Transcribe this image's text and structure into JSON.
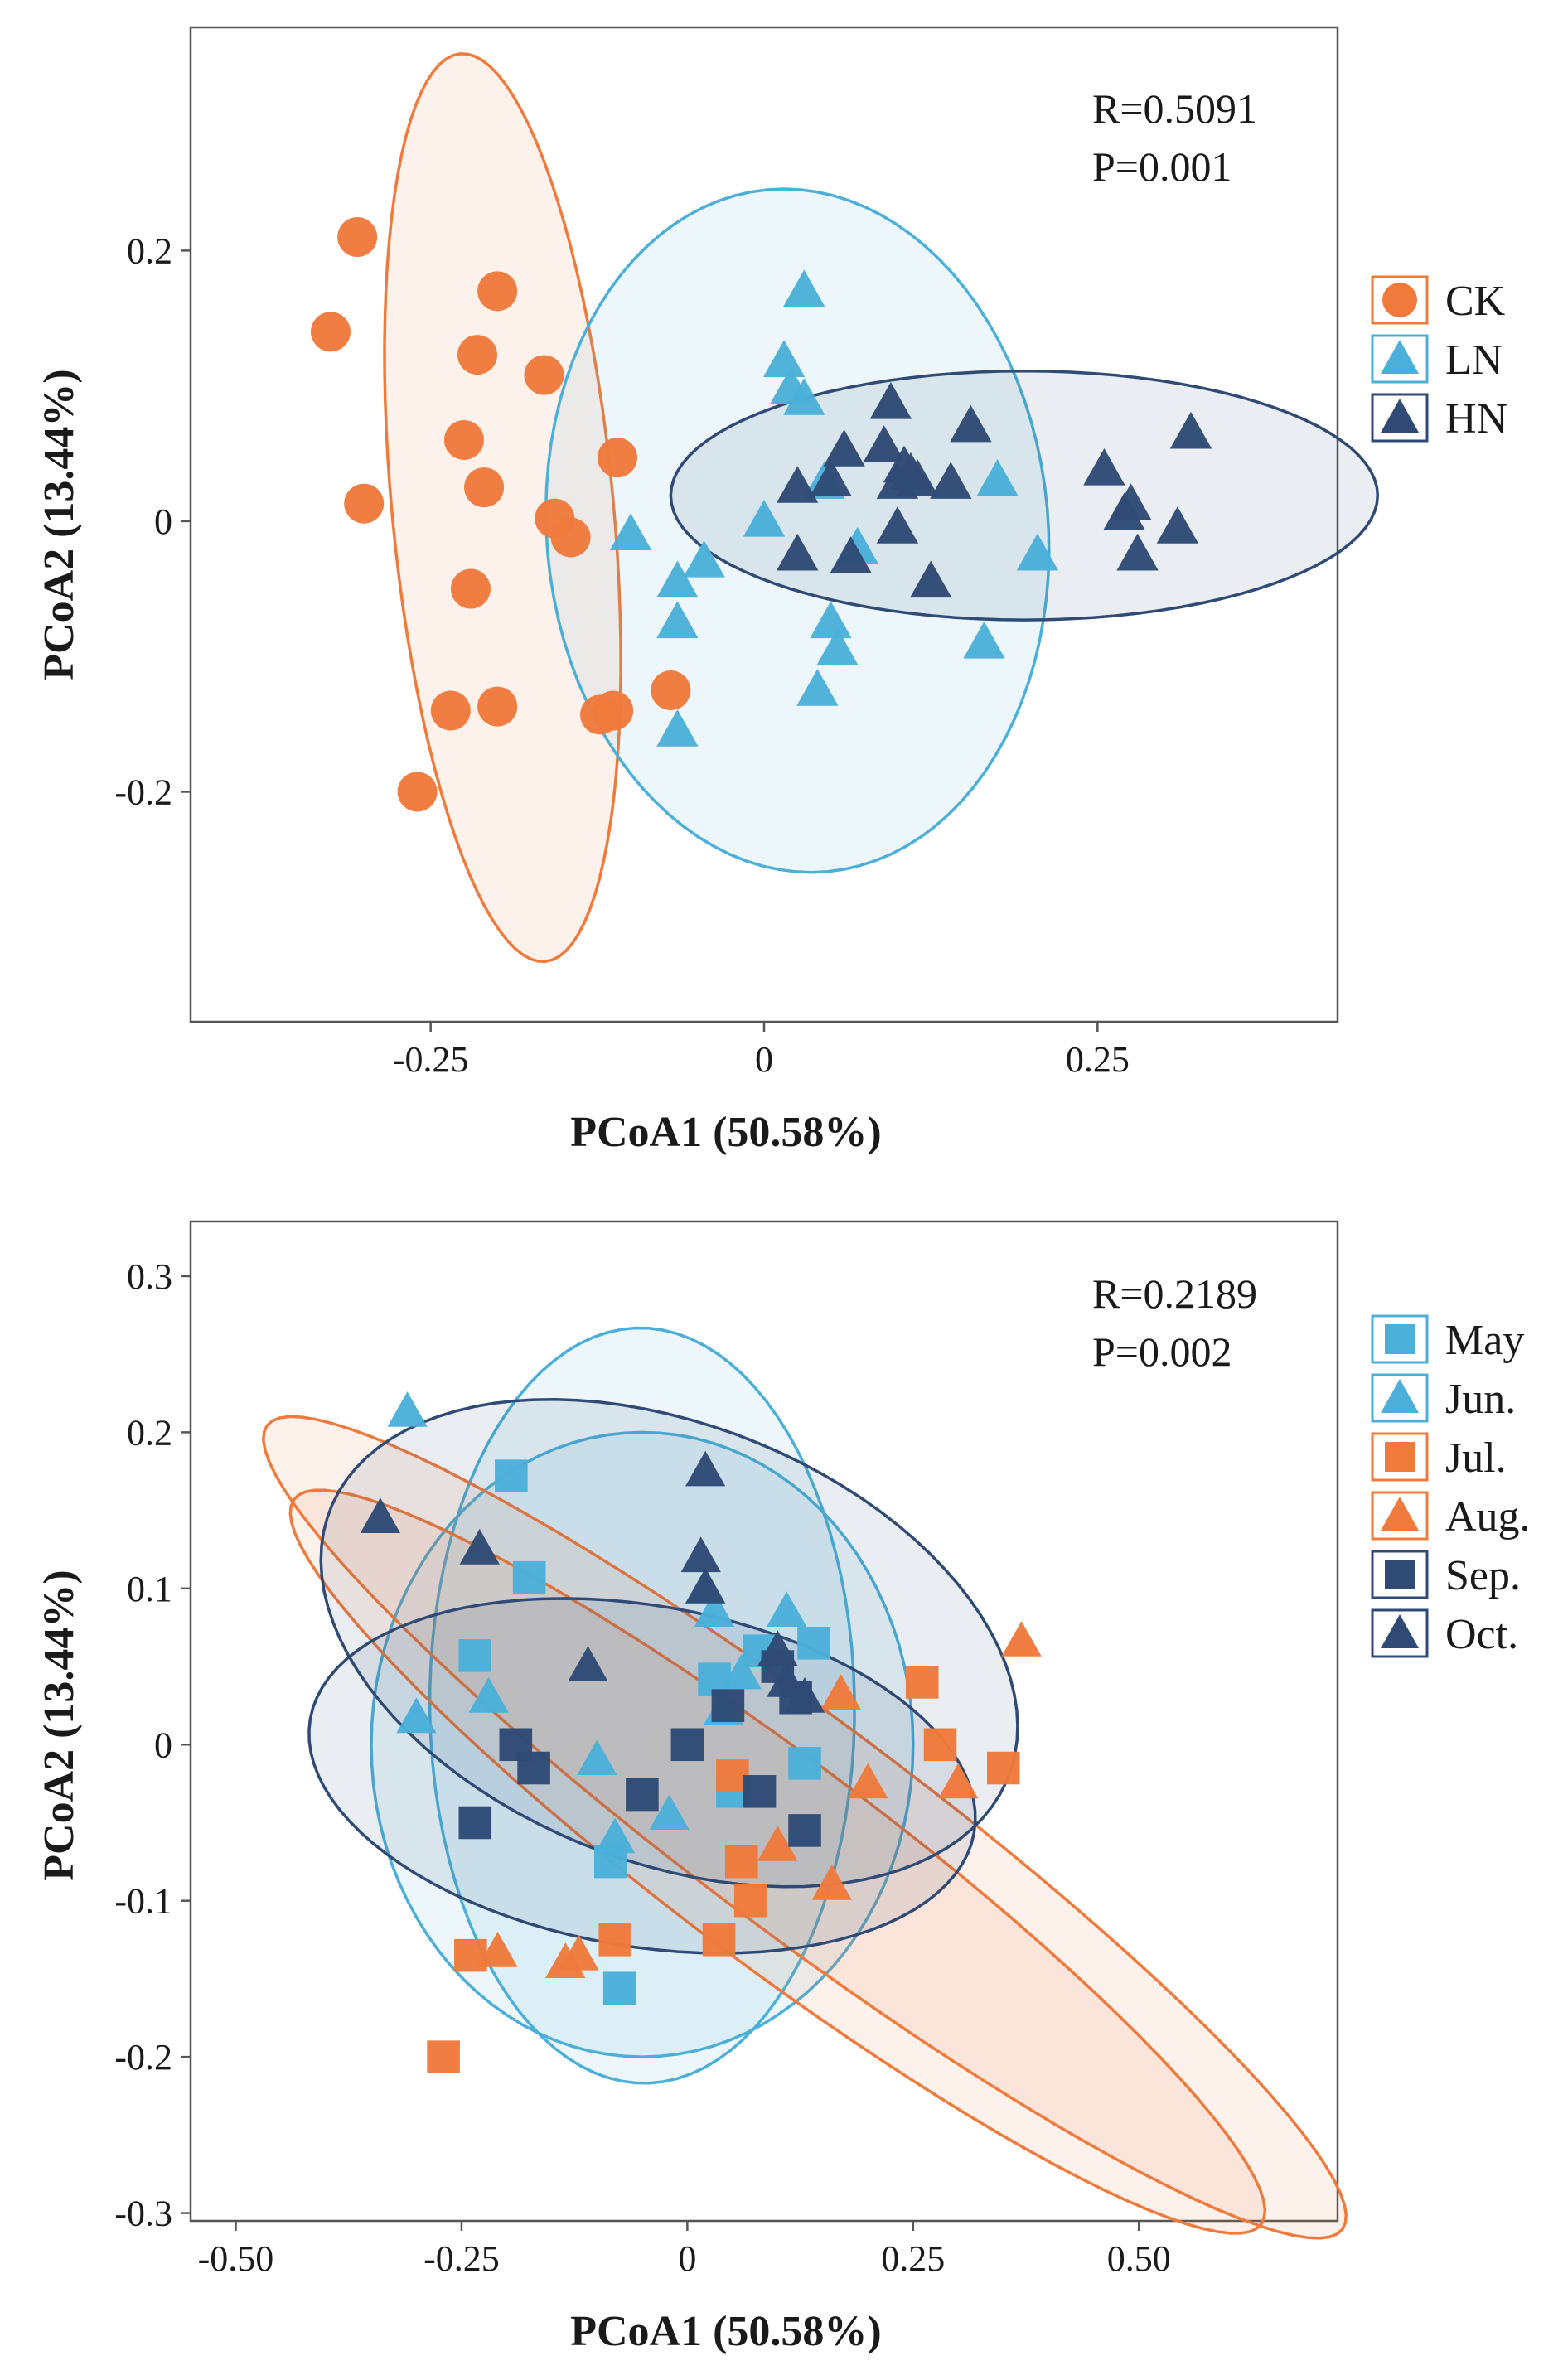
{
  "chart_data": [
    {
      "type": "scatter",
      "title": "",
      "xlabel": "PCoA1 (50.58%)",
      "ylabel": "PCoA2 (13.44%)",
      "xlim": [
        -0.43,
        0.43
      ],
      "ylim": [
        -0.37,
        0.365
      ],
      "xticks": [
        -0.25,
        0,
        0.25
      ],
      "xtick_labels": [
        "-0.25",
        "0",
        "0.25"
      ],
      "yticks": [
        -0.2,
        0,
        0.2
      ],
      "ytick_labels": [
        "-0.2",
        "0",
        "0.2"
      ],
      "grid": false,
      "legend_position": "right",
      "stats": [
        "R=0.5091",
        "P=0.001"
      ],
      "series": [
        {
          "name": "CK",
          "marker": "circle",
          "color": "#F07A3C",
          "ellipse": {
            "cx": -0.196,
            "cy": 0.01,
            "rx": 0.083,
            "ry": 0.337,
            "angle": 0.095
          },
          "points": [
            [
              -0.305,
              0.21
            ],
            [
              -0.325,
              0.14
            ],
            [
              -0.3,
              0.013
            ],
            [
              -0.2,
              0.17
            ],
            [
              -0.215,
              0.123
            ],
            [
              -0.165,
              0.108
            ],
            [
              -0.225,
              0.06
            ],
            [
              -0.21,
              0.025
            ],
            [
              -0.11,
              0.047
            ],
            [
              -0.157,
              0.002
            ],
            [
              -0.145,
              -0.012
            ],
            [
              -0.22,
              -0.05
            ],
            [
              -0.235,
              -0.14
            ],
            [
              -0.2,
              -0.137
            ],
            [
              -0.123,
              -0.143
            ],
            [
              -0.113,
              -0.14
            ],
            [
              -0.07,
              -0.125
            ],
            [
              -0.26,
              -0.2
            ]
          ]
        },
        {
          "name": "LN",
          "marker": "triangle",
          "color": "#4BAFD9",
          "ellipse": {
            "cx": 0.025,
            "cy": -0.007,
            "rx": 0.188,
            "ry": 0.253,
            "angle": 0.09
          },
          "points": [
            [
              0.03,
              0.17
            ],
            [
              0.015,
              0.118
            ],
            [
              0.02,
              0.098
            ],
            [
              0.03,
              0.09
            ],
            [
              -0.1,
              -0.01
            ],
            [
              -0.045,
              -0.03
            ],
            [
              -0.065,
              -0.045
            ],
            [
              -0.065,
              -0.075
            ],
            [
              0.0,
              0.0
            ],
            [
              0.045,
              0.028
            ],
            [
              0.07,
              -0.02
            ],
            [
              0.05,
              -0.075
            ],
            [
              0.055,
              -0.095
            ],
            [
              0.04,
              -0.125
            ],
            [
              0.165,
              -0.09
            ],
            [
              0.175,
              0.03
            ],
            [
              0.205,
              -0.025
            ],
            [
              -0.065,
              -0.155
            ]
          ]
        },
        {
          "name": "HN",
          "marker": "triangle",
          "color": "#2E4A75",
          "ellipse": {
            "cx": 0.195,
            "cy": 0.019,
            "rx": 0.265,
            "ry": 0.092,
            "angle": 0.0
          },
          "points": [
            [
              0.095,
              0.087
            ],
            [
              0.155,
              0.07
            ],
            [
              0.06,
              0.052
            ],
            [
              0.09,
              0.055
            ],
            [
              0.105,
              0.04
            ],
            [
              0.1,
              0.028
            ],
            [
              0.11,
              0.035
            ],
            [
              0.14,
              0.028
            ],
            [
              0.025,
              0.025
            ],
            [
              0.05,
              0.03
            ],
            [
              0.115,
              0.03
            ],
            [
              0.32,
              0.065
            ],
            [
              0.255,
              0.038
            ],
            [
              0.275,
              0.012
            ],
            [
              0.27,
              0.005
            ],
            [
              0.31,
              -0.005
            ],
            [
              0.1,
              -0.005
            ],
            [
              0.025,
              -0.025
            ],
            [
              0.065,
              -0.027
            ],
            [
              0.125,
              -0.045
            ],
            [
              0.28,
              -0.025
            ]
          ]
        }
      ]
    },
    {
      "type": "scatter",
      "title": "",
      "xlabel": "PCoA1 (50.58%)",
      "ylabel": "PCoA2 (13.44%)",
      "xlim": [
        -0.55,
        0.72
      ],
      "ylim": [
        -0.305,
        0.335
      ],
      "xticks": [
        -0.5,
        -0.25,
        0,
        0.25,
        0.5
      ],
      "xtick_labels": [
        "-0.50",
        "-0.25",
        "0",
        "0.25",
        "0.50"
      ],
      "yticks": [
        -0.3,
        -0.2,
        -0.1,
        0,
        0.1,
        0.2,
        0.3
      ],
      "ytick_labels": [
        "-0.3",
        "-0.2",
        "-0.1",
        "0",
        "0.1",
        "0.2",
        "0.3"
      ],
      "grid": false,
      "legend_position": "right",
      "stats": [
        "R=0.2189",
        "P=0.002"
      ],
      "series": [
        {
          "name": "May",
          "marker": "square",
          "color": "#4BAFD9",
          "ellipse": {
            "cx": -0.05,
            "cy": 0.025,
            "rx": 0.235,
            "ry": 0.242,
            "angle": 0.16
          },
          "points": [
            [
              -0.195,
              0.172
            ],
            [
              -0.175,
              0.107
            ],
            [
              -0.235,
              0.057
            ],
            [
              0.08,
              0.06
            ],
            [
              0.03,
              0.042
            ],
            [
              0.14,
              0.065
            ],
            [
              0.05,
              -0.03
            ],
            [
              0.13,
              -0.012
            ],
            [
              -0.085,
              -0.075
            ],
            [
              -0.075,
              -0.156
            ]
          ]
        },
        {
          "name": "Jun.",
          "marker": "triangle",
          "color": "#4BAFD9",
          "ellipse": {
            "cx": -0.05,
            "cy": 0.0,
            "rx": 0.3,
            "ry": 0.2,
            "angle": 0.0
          },
          "points": [
            [
              -0.31,
              0.213
            ],
            [
              -0.3,
              0.017
            ],
            [
              -0.22,
              0.03
            ],
            [
              0.02,
              0.1
            ],
            [
              0.03,
              0.085
            ],
            [
              0.11,
              0.085
            ],
            [
              0.06,
              0.045
            ],
            [
              0.04,
              0.022
            ],
            [
              -0.1,
              -0.01
            ],
            [
              -0.08,
              -0.06
            ],
            [
              -0.02,
              -0.045
            ]
          ]
        },
        {
          "name": "Jul.",
          "marker": "square",
          "color": "#F07A3C",
          "ellipse": {
            "cx": 0.1,
            "cy": -0.075,
            "rx": 0.585,
            "ry": 0.075,
            "angle": -0.4
          },
          "points": [
            [
              -0.27,
              -0.2
            ],
            [
              -0.24,
              -0.135
            ],
            [
              -0.08,
              -0.125
            ],
            [
              0.035,
              -0.125
            ],
            [
              0.06,
              -0.075
            ],
            [
              0.07,
              -0.1
            ],
            [
              0.05,
              -0.02
            ],
            [
              0.26,
              0.04
            ],
            [
              0.28,
              0.0
            ],
            [
              0.35,
              -0.015
            ]
          ]
        },
        {
          "name": "Aug.",
          "marker": "triangle",
          "color": "#F07A3C",
          "ellipse": {
            "cx": 0.13,
            "cy": -0.053,
            "rx": 0.65,
            "ry": 0.078,
            "angle": -0.4
          },
          "points": [
            [
              -0.21,
              -0.133
            ],
            [
              -0.135,
              -0.14
            ],
            [
              -0.12,
              -0.135
            ],
            [
              0.16,
              -0.09
            ],
            [
              0.17,
              0.032
            ],
            [
              0.2,
              -0.025
            ],
            [
              0.3,
              -0.025
            ],
            [
              0.37,
              0.066
            ],
            [
              0.1,
              -0.065
            ]
          ]
        },
        {
          "name": "Sep.",
          "marker": "square",
          "color": "#2E4A75",
          "ellipse": {
            "cx": -0.05,
            "cy": -0.02,
            "rx": 0.37,
            "ry": 0.11,
            "angle": -0.08
          },
          "points": [
            [
              -0.19,
              0.0
            ],
            [
              -0.17,
              -0.015
            ],
            [
              -0.235,
              -0.05
            ],
            [
              -0.05,
              -0.032
            ],
            [
              0.0,
              0.0
            ],
            [
              0.045,
              0.025
            ],
            [
              0.08,
              -0.03
            ],
            [
              0.13,
              -0.055
            ],
            [
              0.12,
              0.03
            ],
            [
              0.1,
              0.05
            ]
          ]
        },
        {
          "name": "Oct.",
          "marker": "triangle",
          "color": "#2E4A75",
          "ellipse": {
            "cx": -0.02,
            "cy": 0.065,
            "rx": 0.39,
            "ry": 0.145,
            "angle": -0.16
          },
          "points": [
            [
              -0.34,
              0.145
            ],
            [
              -0.23,
              0.125
            ],
            [
              0.02,
              0.175
            ],
            [
              0.015,
              0.12
            ],
            [
              0.02,
              0.1
            ],
            [
              -0.11,
              0.05
            ],
            [
              0.1,
              0.06
            ],
            [
              0.11,
              0.04
            ],
            [
              0.13,
              0.03
            ]
          ]
        }
      ]
    }
  ]
}
